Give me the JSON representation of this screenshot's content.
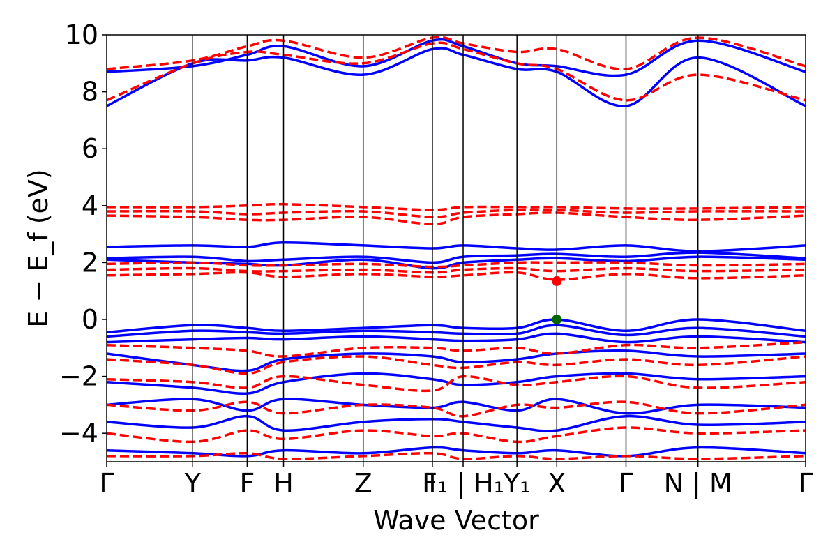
{
  "chart_data": {
    "type": "line",
    "xlabel": "Wave Vector",
    "ylabel": "E − E_f (eV)",
    "ylim": [
      -5,
      10
    ],
    "yticks": [
      {
        "value": -4,
        "label": "−4"
      },
      {
        "value": -2,
        "label": "−2"
      },
      {
        "value": 0,
        "label": "0"
      },
      {
        "value": 2,
        "label": "2"
      },
      {
        "value": 4,
        "label": "4"
      },
      {
        "value": 6,
        "label": "6"
      },
      {
        "value": 8,
        "label": "8"
      },
      {
        "value": 10,
        "label": "10"
      }
    ],
    "xlim": [
      0,
      1
    ],
    "kpoints": [
      {
        "x": 0.0,
        "label": "Γ"
      },
      {
        "x": 0.123,
        "label": "Y"
      },
      {
        "x": 0.201,
        "label": "F"
      },
      {
        "x": 0.253,
        "label": "H"
      },
      {
        "x": 0.367,
        "label": "Z"
      },
      {
        "x": 0.466,
        "label": "I"
      },
      {
        "x": 0.51,
        "label": "F₁ | H₁"
      },
      {
        "x": 0.587,
        "label": "Y₁"
      },
      {
        "x": 0.644,
        "label": "X"
      },
      {
        "x": 0.743,
        "label": "Γ"
      },
      {
        "x": 0.846,
        "label": "N | M"
      },
      {
        "x": 1.0,
        "label": "Γ"
      }
    ],
    "band_edges": {
      "vbm": {
        "x": 0.644,
        "y": 0.0,
        "color": "#006400"
      },
      "cbm": {
        "x": 0.644,
        "y": 1.35,
        "color": "#ff0000"
      }
    },
    "series": [
      {
        "style": "solid",
        "color": "#0000ff",
        "bands": [
          [
            -0.45,
            -0.2,
            -0.3,
            -0.4,
            -0.3,
            -0.2,
            -0.3,
            -0.3,
            0.0,
            -0.4,
            0.0,
            -0.4
          ],
          [
            -0.6,
            -0.4,
            -0.45,
            -0.5,
            -0.4,
            -0.45,
            -0.5,
            -0.5,
            -0.2,
            -0.55,
            -0.3,
            -0.6
          ],
          [
            -0.8,
            -0.7,
            -0.65,
            -0.7,
            -0.6,
            -0.7,
            -0.75,
            -0.7,
            -0.5,
            -0.8,
            -0.6,
            -0.8
          ],
          [
            2.15,
            2.2,
            2.05,
            2.1,
            2.2,
            2.0,
            2.2,
            2.25,
            2.3,
            2.2,
            2.35,
            2.15
          ],
          [
            2.55,
            2.6,
            2.55,
            2.7,
            2.6,
            2.5,
            2.6,
            2.5,
            2.45,
            2.6,
            2.4,
            2.6
          ],
          [
            2.1,
            2.0,
            1.95,
            1.9,
            2.1,
            1.8,
            2.0,
            2.1,
            2.15,
            2.05,
            2.2,
            2.1
          ],
          [
            7.5,
            9.0,
            9.1,
            9.2,
            8.6,
            9.5,
            9.3,
            8.8,
            8.7,
            7.5,
            9.2,
            7.5
          ],
          [
            8.7,
            8.9,
            9.3,
            9.6,
            8.9,
            9.8,
            9.6,
            9.0,
            8.9,
            8.6,
            9.8,
            8.7
          ],
          [
            -1.2,
            -1.6,
            -1.8,
            -1.4,
            -1.2,
            -1.3,
            -1.5,
            -1.4,
            -1.2,
            -1.1,
            -1.3,
            -1.2
          ],
          [
            -2.2,
            -2.4,
            -2.6,
            -2.2,
            -1.9,
            -2.1,
            -2.3,
            -2.2,
            -2.0,
            -1.9,
            -2.1,
            -2.0
          ],
          [
            -3.0,
            -2.8,
            -3.2,
            -2.8,
            -3.0,
            -3.1,
            -2.9,
            -3.2,
            -2.8,
            -3.3,
            -3.0,
            -3.1
          ],
          [
            -3.6,
            -3.8,
            -3.4,
            -3.9,
            -3.6,
            -3.5,
            -3.6,
            -3.8,
            -3.9,
            -3.4,
            -3.7,
            -3.6
          ],
          [
            -4.6,
            -4.7,
            -4.8,
            -4.6,
            -4.7,
            -4.5,
            -4.6,
            -4.7,
            -4.6,
            -4.8,
            -4.5,
            -4.7
          ]
        ]
      },
      {
        "style": "dashed",
        "color": "#ff0000",
        "bands": [
          [
            1.55,
            1.6,
            1.65,
            1.5,
            1.6,
            1.5,
            1.55,
            1.65,
            1.4,
            1.6,
            1.45,
            1.55
          ],
          [
            1.75,
            1.8,
            1.7,
            1.7,
            1.75,
            1.65,
            1.75,
            1.8,
            1.7,
            1.8,
            1.7,
            1.75
          ],
          [
            1.95,
            2.0,
            1.9,
            1.9,
            1.95,
            1.85,
            1.9,
            2.0,
            2.0,
            2.0,
            1.9,
            1.95
          ],
          [
            3.65,
            3.6,
            3.5,
            3.5,
            3.6,
            3.35,
            3.6,
            3.7,
            3.75,
            3.6,
            3.5,
            3.65
          ],
          [
            3.8,
            3.8,
            3.7,
            3.75,
            3.8,
            3.6,
            3.75,
            3.85,
            3.85,
            3.75,
            3.8,
            3.8
          ],
          [
            3.95,
            3.95,
            4.0,
            4.05,
            3.95,
            3.85,
            3.95,
            3.95,
            3.95,
            3.9,
            3.9,
            3.95
          ],
          [
            7.7,
            9.0,
            9.4,
            9.3,
            9.0,
            9.7,
            9.5,
            9.0,
            8.8,
            7.7,
            8.6,
            7.7
          ],
          [
            8.8,
            9.1,
            9.6,
            9.8,
            9.2,
            9.9,
            9.7,
            9.4,
            9.5,
            8.8,
            9.9,
            8.9
          ],
          [
            -0.9,
            -1.0,
            -1.1,
            -1.3,
            -1.0,
            -1.0,
            -1.1,
            -1.0,
            -1.2,
            -0.9,
            -1.0,
            -0.8
          ],
          [
            -1.4,
            -1.6,
            -1.9,
            -1.5,
            -1.3,
            -1.6,
            -1.7,
            -1.5,
            -1.6,
            -1.4,
            -1.6,
            -1.3
          ],
          [
            -2.1,
            -2.2,
            -2.4,
            -2.0,
            -2.3,
            -2.5,
            -2.0,
            -2.3,
            -2.2,
            -2.0,
            -2.4,
            -2.2
          ],
          [
            -3.0,
            -3.2,
            -2.9,
            -3.3,
            -3.0,
            -3.1,
            -3.4,
            -3.0,
            -3.1,
            -2.9,
            -3.3,
            -3.0
          ],
          [
            -4.0,
            -4.3,
            -3.9,
            -4.2,
            -3.9,
            -4.1,
            -4.0,
            -4.3,
            -4.1,
            -3.8,
            -4.0,
            -3.9
          ],
          [
            -4.8,
            -4.8,
            -4.7,
            -4.9,
            -4.8,
            -4.7,
            -4.9,
            -4.8,
            -4.9,
            -4.8,
            -4.9,
            -4.8
          ]
        ]
      }
    ]
  }
}
